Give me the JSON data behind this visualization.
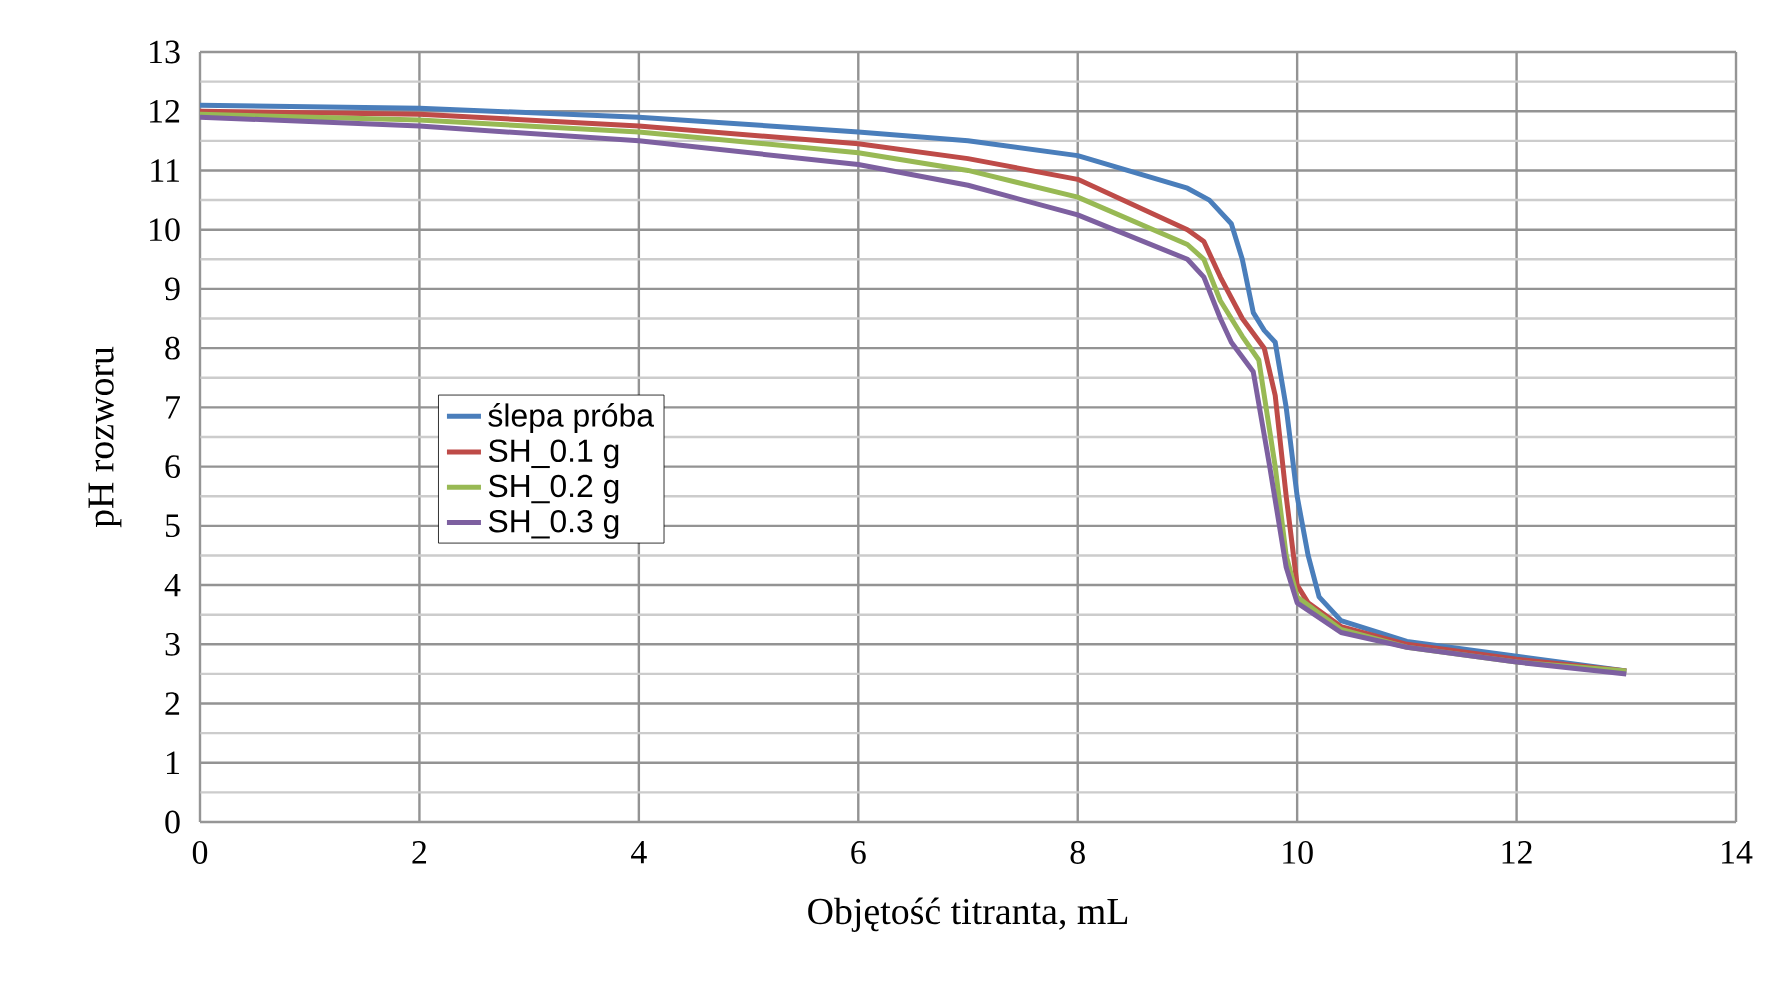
{
  "chart_data": {
    "type": "line",
    "xlabel": "Objętość titranta, mL",
    "ylabel": "pH rozworu",
    "xlim": [
      0,
      14
    ],
    "xticks": [
      0,
      2,
      4,
      6,
      8,
      10,
      12,
      14
    ],
    "ylim": [
      0,
      13
    ],
    "yticks": [
      0,
      1,
      2,
      3,
      4,
      5,
      6,
      7,
      8,
      9,
      10,
      11,
      12,
      13
    ],
    "grid": true,
    "legend": "left",
    "marker": "none",
    "line_style": "solid",
    "series": [
      {
        "name": "ślepa próba",
        "color": "#4a7ebb",
        "x": [
          0,
          2,
          4,
          6,
          7,
          8,
          9,
          9.2,
          9.4,
          9.5,
          9.6,
          9.7,
          9.8,
          9.9,
          10,
          10.1,
          10.2,
          10.4,
          11,
          12,
          13
        ],
        "values": [
          12.1,
          12.05,
          11.9,
          11.65,
          11.5,
          11.25,
          10.7,
          10.5,
          10.1,
          9.5,
          8.6,
          8.3,
          8.1,
          7,
          5.5,
          4.5,
          3.8,
          3.4,
          3.05,
          2.8,
          2.55
        ]
      },
      {
        "name": "SH_0.1 g",
        "color": "#be4b48",
        "x": [
          0,
          2,
          4,
          6,
          7,
          8,
          9,
          9.15,
          9.3,
          9.5,
          9.7,
          9.8,
          9.9,
          10,
          10.1,
          10.4,
          11,
          12,
          13
        ],
        "values": [
          12.0,
          11.95,
          11.75,
          11.45,
          11.2,
          10.85,
          10.0,
          9.8,
          9.2,
          8.5,
          8.0,
          7.2,
          5.5,
          4.0,
          3.7,
          3.3,
          3.0,
          2.75,
          2.55
        ]
      },
      {
        "name": "SH_0.2 g",
        "color": "#98b954",
        "x": [
          0,
          2,
          4,
          6,
          7,
          8,
          9,
          9.15,
          9.3,
          9.5,
          9.65,
          9.8,
          9.9,
          10,
          10.4,
          11,
          12,
          13
        ],
        "values": [
          11.95,
          11.85,
          11.65,
          11.3,
          11.0,
          10.55,
          9.75,
          9.5,
          8.8,
          8.2,
          7.8,
          6.0,
          4.5,
          3.8,
          3.25,
          2.95,
          2.7,
          2.55
        ]
      },
      {
        "name": "SH_0.3 g",
        "color": "#7d60a0",
        "x": [
          0,
          2,
          4,
          6,
          7,
          8,
          9,
          9.15,
          9.3,
          9.4,
          9.6,
          9.75,
          9.9,
          10,
          10.4,
          11,
          12,
          13
        ],
        "values": [
          11.9,
          11.75,
          11.5,
          11.1,
          10.75,
          10.25,
          9.5,
          9.2,
          8.5,
          8.1,
          7.6,
          6.0,
          4.3,
          3.7,
          3.2,
          2.95,
          2.7,
          2.5
        ]
      }
    ]
  }
}
